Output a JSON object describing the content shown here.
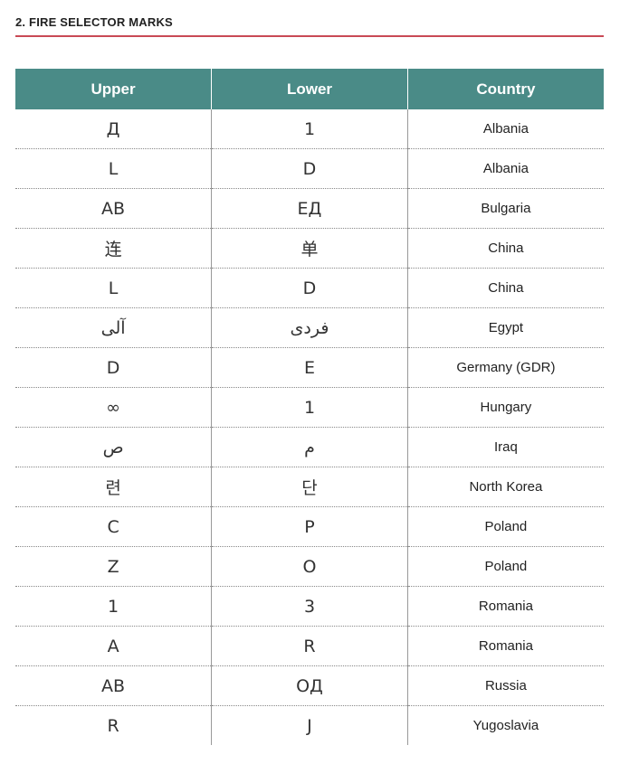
{
  "section_title": "2. FIRE SELECTOR MARKS",
  "accent_color": "#c94a55",
  "header_color": "#4a8b87",
  "table": {
    "headers": [
      "Upper",
      "Lower",
      "Country"
    ],
    "rows": [
      [
        "Д",
        "1",
        "Albania"
      ],
      [
        "L",
        "D",
        "Albania"
      ],
      [
        "AB",
        "ЕД",
        "Bulgaria"
      ],
      [
        "连",
        "单",
        "China"
      ],
      [
        "L",
        "D",
        "China"
      ],
      [
        "آلی",
        "فردی",
        "Egypt"
      ],
      [
        "D",
        "E",
        "Germany (GDR)"
      ],
      [
        "∞",
        "1",
        "Hungary"
      ],
      [
        "ص",
        "م",
        "Iraq"
      ],
      [
        "련",
        "단",
        "North Korea"
      ],
      [
        "C",
        "P",
        "Poland"
      ],
      [
        "Z",
        "O",
        "Poland"
      ],
      [
        "1",
        "3",
        "Romania"
      ],
      [
        "A",
        "R",
        "Romania"
      ],
      [
        "АВ",
        "ОД",
        "Russia"
      ],
      [
        "R",
        "J",
        "Yugoslavia"
      ]
    ]
  }
}
